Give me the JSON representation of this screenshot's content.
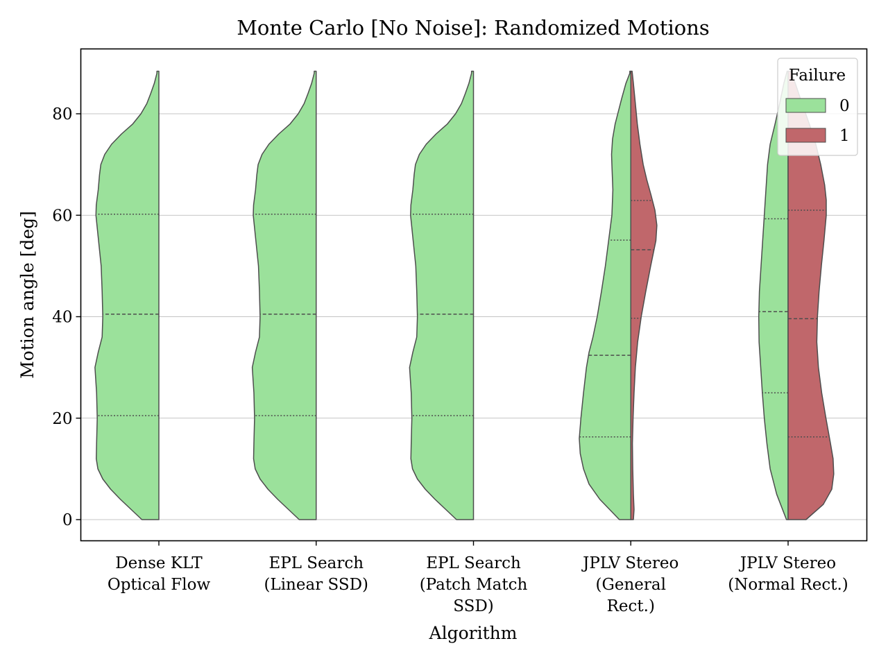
{
  "chart_data": {
    "type": "violin",
    "title": "Monte Carlo [No Noise]: Randomized Motions",
    "xlabel": "Algorithm",
    "ylabel": "Motion angle [deg]",
    "ylim": [
      -4.2,
      92.5
    ],
    "yticks": [
      0,
      20,
      40,
      60,
      80
    ],
    "grid": "horizontal",
    "split": true,
    "legend": {
      "title": "Failure",
      "placement": "top-right",
      "entries": [
        {
          "label": "0",
          "color": "#9be19b"
        },
        {
          "label": "1",
          "color": "#c0676b"
        }
      ]
    },
    "categories": [
      [
        "Dense KLT",
        "Optical Flow"
      ],
      [
        "EPL Search",
        "(Linear SSD)"
      ],
      [
        "EPL Search",
        "(Patch Match",
        "SSD)"
      ],
      [
        "JPLV Stereo",
        "(General",
        "Rect.)"
      ],
      [
        "JPLV Stereo",
        "(Normal Rect.)"
      ]
    ],
    "series": [
      {
        "name": "0",
        "color": "#9be19b",
        "violins": [
          {
            "profile": [
              [
                0,
                5.2
              ],
              [
                2,
                8.5
              ],
              [
                4,
                11.8
              ],
              [
                6,
                14.8
              ],
              [
                8,
                17.2
              ],
              [
                10,
                18.7
              ],
              [
                12,
                19.2
              ],
              [
                15,
                19.1
              ],
              [
                20,
                18.9
              ],
              [
                25,
                19.1
              ],
              [
                30,
                19.6
              ],
              [
                33,
                18.6
              ],
              [
                36,
                17.4
              ],
              [
                40,
                17.2
              ],
              [
                45,
                17.4
              ],
              [
                50,
                17.7
              ],
              [
                55,
                18.5
              ],
              [
                60,
                19.3
              ],
              [
                62,
                19.2
              ],
              [
                65,
                18.6
              ],
              [
                68,
                18.2
              ],
              [
                70,
                17.8
              ],
              [
                72,
                16.6
              ],
              [
                74,
                14.5
              ],
              [
                76,
                11.5
              ],
              [
                78,
                8.0
              ],
              [
                80,
                5.5
              ],
              [
                82,
                3.7
              ],
              [
                84,
                2.5
              ],
              [
                86,
                1.4
              ],
              [
                88,
                0.6
              ],
              [
                88.4,
                0.6
              ]
            ],
            "quartiles": [
              20.5,
              40.5,
              60.2
            ]
          },
          {
            "profile": [
              [
                0,
                5.2
              ],
              [
                2,
                8.5
              ],
              [
                4,
                11.8
              ],
              [
                6,
                14.8
              ],
              [
                8,
                17.2
              ],
              [
                10,
                18.7
              ],
              [
                12,
                19.2
              ],
              [
                15,
                19.1
              ],
              [
                20,
                18.9
              ],
              [
                25,
                19.1
              ],
              [
                30,
                19.6
              ],
              [
                33,
                18.6
              ],
              [
                36,
                17.4
              ],
              [
                40,
                17.2
              ],
              [
                45,
                17.4
              ],
              [
                50,
                17.7
              ],
              [
                55,
                18.5
              ],
              [
                60,
                19.3
              ],
              [
                62,
                19.2
              ],
              [
                65,
                18.6
              ],
              [
                68,
                18.2
              ],
              [
                70,
                17.8
              ],
              [
                72,
                16.6
              ],
              [
                74,
                14.5
              ],
              [
                76,
                11.5
              ],
              [
                78,
                8.0
              ],
              [
                80,
                5.5
              ],
              [
                82,
                3.7
              ],
              [
                84,
                2.5
              ],
              [
                86,
                1.4
              ],
              [
                88,
                0.6
              ],
              [
                88.4,
                0.6
              ]
            ],
            "quartiles": [
              20.5,
              40.5,
              60.2
            ]
          },
          {
            "profile": [
              [
                0,
                5.2
              ],
              [
                2,
                8.5
              ],
              [
                4,
                11.8
              ],
              [
                6,
                14.8
              ],
              [
                8,
                17.2
              ],
              [
                10,
                18.7
              ],
              [
                12,
                19.2
              ],
              [
                15,
                19.1
              ],
              [
                20,
                18.9
              ],
              [
                25,
                19.1
              ],
              [
                30,
                19.6
              ],
              [
                33,
                18.6
              ],
              [
                36,
                17.4
              ],
              [
                40,
                17.2
              ],
              [
                45,
                17.4
              ],
              [
                50,
                17.7
              ],
              [
                55,
                18.5
              ],
              [
                60,
                19.3
              ],
              [
                62,
                19.2
              ],
              [
                65,
                18.6
              ],
              [
                68,
                18.2
              ],
              [
                70,
                17.8
              ],
              [
                72,
                16.6
              ],
              [
                74,
                14.5
              ],
              [
                76,
                11.5
              ],
              [
                78,
                8.0
              ],
              [
                80,
                5.5
              ],
              [
                82,
                3.7
              ],
              [
                84,
                2.5
              ],
              [
                86,
                1.4
              ],
              [
                88,
                0.6
              ],
              [
                88.4,
                0.6
              ]
            ],
            "quartiles": [
              20.5,
              40.5,
              60.2
            ]
          },
          {
            "profile": [
              [
                0,
                3.5
              ],
              [
                2,
                6.5
              ],
              [
                4,
                9.5
              ],
              [
                7,
                12.8
              ],
              [
                10,
                14.5
              ],
              [
                13,
                15.5
              ],
              [
                16,
                15.8
              ],
              [
                20,
                15.3
              ],
              [
                25,
                14.5
              ],
              [
                30,
                13.6
              ],
              [
                33,
                12.8
              ],
              [
                36,
                11.6
              ],
              [
                40,
                10.3
              ],
              [
                45,
                9.0
              ],
              [
                50,
                7.8
              ],
              [
                55,
                6.8
              ],
              [
                60,
                5.8
              ],
              [
                65,
                5.5
              ],
              [
                70,
                5.8
              ],
              [
                72,
                5.9
              ],
              [
                75,
                5.6
              ],
              [
                78,
                4.8
              ],
              [
                80,
                4.0
              ],
              [
                83,
                2.8
              ],
              [
                86,
                1.5
              ],
              [
                88,
                0.3
              ],
              [
                88.4,
                0.3
              ]
            ],
            "quartiles": [
              16.3,
              32.4,
              55.1
            ]
          },
          {
            "profile": [
              [
                0,
                0.5
              ],
              [
                5,
                3.5
              ],
              [
                10,
                5.5
              ],
              [
                15,
                6.5
              ],
              [
                20,
                7.3
              ],
              [
                25,
                7.9
              ],
              [
                30,
                8.4
              ],
              [
                35,
                8.9
              ],
              [
                40,
                9.0
              ],
              [
                45,
                8.8
              ],
              [
                50,
                8.3
              ],
              [
                55,
                7.8
              ],
              [
                60,
                7.3
              ],
              [
                65,
                6.8
              ],
              [
                70,
                6.3
              ],
              [
                74,
                5.5
              ],
              [
                78,
                4.0
              ],
              [
                82,
                2.6
              ],
              [
                86,
                1.3
              ],
              [
                88.4,
                0.3
              ]
            ],
            "quartiles": [
              25.0,
              41.0,
              59.3
            ]
          }
        ]
      },
      {
        "name": "1",
        "color": "#c0676b",
        "violins": [
          null,
          null,
          null,
          {
            "profile": [
              [
                0,
                0.8
              ],
              [
                2,
                1.0
              ],
              [
                5,
                0.8
              ],
              [
                10,
                0.6
              ],
              [
                15,
                0.5
              ],
              [
                20,
                0.7
              ],
              [
                25,
                1.0
              ],
              [
                30,
                1.4
              ],
              [
                35,
                2.1
              ],
              [
                40,
                3.2
              ],
              [
                45,
                4.6
              ],
              [
                50,
                6.1
              ],
              [
                55,
                7.7
              ],
              [
                58,
                8.0
              ],
              [
                61,
                7.4
              ],
              [
                64,
                6.2
              ],
              [
                67,
                4.9
              ],
              [
                70,
                3.8
              ],
              [
                74,
                2.8
              ],
              [
                78,
                2.0
              ],
              [
                82,
                1.4
              ],
              [
                86,
                0.8
              ],
              [
                88.4,
                0.4
              ]
            ],
            "quartiles": [
              39.7,
              53.2,
              62.9
            ]
          },
          {
            "profile": [
              [
                0,
                5.5
              ],
              [
                3,
                10.8
              ],
              [
                6,
                13.4
              ],
              [
                9,
                14.0
              ],
              [
                12,
                13.8
              ],
              [
                15,
                13.0
              ],
              [
                20,
                11.6
              ],
              [
                25,
                10.3
              ],
              [
                30,
                9.3
              ],
              [
                35,
                8.8
              ],
              [
                40,
                9.0
              ],
              [
                45,
                9.5
              ],
              [
                50,
                10.2
              ],
              [
                55,
                11.0
              ],
              [
                60,
                11.7
              ],
              [
                63,
                11.7
              ],
              [
                66,
                11.2
              ],
              [
                70,
                10.0
              ],
              [
                74,
                8.5
              ],
              [
                78,
                6.5
              ],
              [
                82,
                4.3
              ],
              [
                86,
                2.2
              ],
              [
                88.4,
                0.8
              ]
            ],
            "quartiles": [
              16.3,
              39.6,
              61.0
            ]
          }
        ]
      }
    ]
  }
}
